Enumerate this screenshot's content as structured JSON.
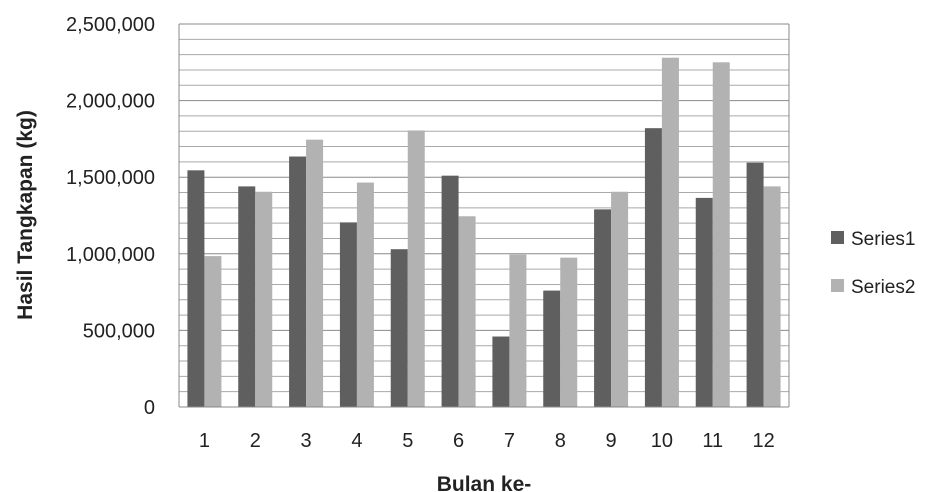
{
  "chart_data": {
    "type": "bar",
    "title": "",
    "xlabel": "Bulan ke-",
    "ylabel": "Hasil Tangkapan (kg)",
    "categories": [
      "1",
      "2",
      "3",
      "4",
      "5",
      "6",
      "7",
      "8",
      "9",
      "10",
      "11",
      "12"
    ],
    "series": [
      {
        "name": "Series1",
        "color": "#5f5f5f",
        "values": [
          1545000,
          1440000,
          1635000,
          1205000,
          1030000,
          1510000,
          460000,
          760000,
          1290000,
          1820000,
          1365000,
          1595000
        ]
      },
      {
        "name": "Series2",
        "color": "#b2b2b2",
        "values": [
          985000,
          1405000,
          1745000,
          1465000,
          1805000,
          1245000,
          995000,
          975000,
          1405000,
          2280000,
          2250000,
          1440000
        ]
      }
    ],
    "ylim": [
      0,
      2500000
    ],
    "y_major_ticks": [
      0,
      500000,
      1000000,
      1500000,
      2000000,
      2500000
    ],
    "y_tick_labels": [
      "0",
      "500,000",
      "1,000,000",
      "1,500,000",
      "2,000,000",
      "2,500,000"
    ],
    "y_minor_step": 100000,
    "grid": true,
    "legend_position": "right"
  }
}
